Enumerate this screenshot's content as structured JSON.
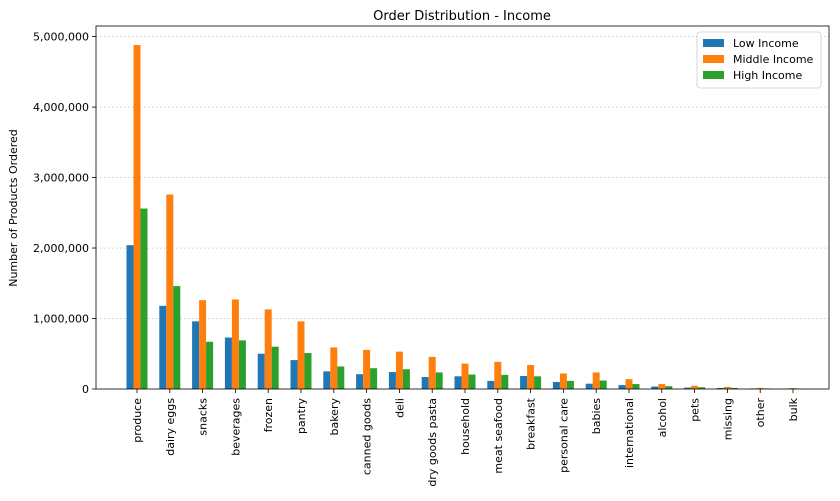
{
  "chart_data": {
    "type": "bar",
    "title": "Order Distribution - Income",
    "xlabel": "",
    "ylabel": "Number of Products Ordered",
    "ylim": [
      0,
      5150000
    ],
    "yticks": [
      0,
      1000000,
      2000000,
      3000000,
      4000000,
      5000000
    ],
    "ytick_labels": [
      "0",
      "1,000,000",
      "2,000,000",
      "3,000,000",
      "4,000,000",
      "5,000,000"
    ],
    "grid": "y-dotted",
    "legend_position": "top-right",
    "categories": [
      "produce",
      "dairy eggs",
      "snacks",
      "beverages",
      "frozen",
      "pantry",
      "bakery",
      "canned goods",
      "deli",
      "dry goods pasta",
      "household",
      "meat seafood",
      "breakfast",
      "personal care",
      "babies",
      "international",
      "alcohol",
      "pets",
      "missing",
      "other",
      "bulk"
    ],
    "series": [
      {
        "name": "Low Income",
        "color": "#1f77b4",
        "values": [
          2040000,
          1180000,
          960000,
          730000,
          500000,
          410000,
          250000,
          210000,
          240000,
          170000,
          180000,
          115000,
          185000,
          100000,
          75000,
          55000,
          35000,
          20000,
          15000,
          8000,
          5000
        ]
      },
      {
        "name": "Middle Income",
        "color": "#ff7f0e",
        "values": [
          4880000,
          2760000,
          1260000,
          1270000,
          1130000,
          960000,
          590000,
          555000,
          530000,
          455000,
          360000,
          385000,
          340000,
          220000,
          235000,
          140000,
          70000,
          45000,
          30000,
          16000,
          13000
        ]
      },
      {
        "name": "High Income",
        "color": "#2ca02c",
        "values": [
          2560000,
          1460000,
          670000,
          690000,
          600000,
          510000,
          320000,
          295000,
          280000,
          235000,
          205000,
          200000,
          180000,
          115000,
          120000,
          70000,
          40000,
          25000,
          15000,
          8000,
          5000
        ]
      }
    ]
  }
}
